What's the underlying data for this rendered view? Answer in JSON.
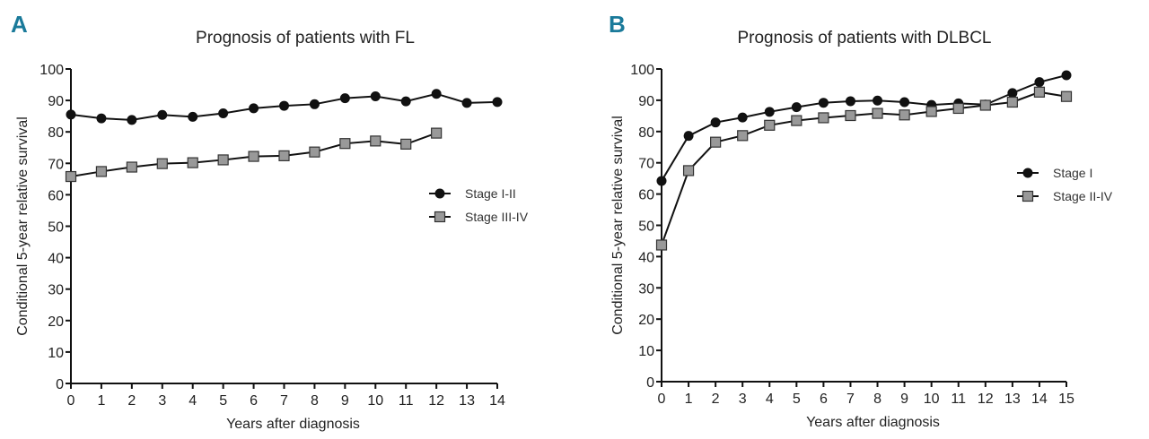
{
  "chart_data": [
    {
      "id": "A",
      "type": "line",
      "panel_label": "A",
      "title": "Prognosis of patients with FL",
      "xlabel": "Years after diagnosis",
      "ylabel": "Conditional 5-year relative survival",
      "x": [
        0,
        1,
        2,
        3,
        4,
        5,
        6,
        7,
        8,
        9,
        10,
        11,
        12,
        13,
        14
      ],
      "xlim": [
        0,
        14
      ],
      "ylim": [
        0,
        100
      ],
      "yticks": [
        0,
        10,
        20,
        30,
        40,
        50,
        60,
        70,
        80,
        90,
        100
      ],
      "xticks": [
        0,
        1,
        2,
        3,
        4,
        5,
        6,
        7,
        8,
        9,
        10,
        11,
        12,
        13,
        14
      ],
      "grid": false,
      "legend_position": "right-middle",
      "series": [
        {
          "name": "Stage I-II",
          "marker": "circle",
          "color": "#111111",
          "values": [
            85.5,
            84.3,
            83.8,
            85.4,
            84.8,
            85.9,
            87.5,
            88.3,
            88.8,
            90.7,
            91.3,
            89.7,
            92.1,
            89.2,
            89.5
          ]
        },
        {
          "name": "Stage III-IV",
          "marker": "square",
          "color": "#999999",
          "values": [
            65.8,
            67.4,
            68.8,
            69.9,
            70.2,
            71.1,
            72.2,
            72.4,
            73.6,
            76.3,
            77.1,
            76.1,
            79.6
          ]
        }
      ]
    },
    {
      "id": "B",
      "type": "line",
      "panel_label": "B",
      "title": "Prognosis of patients with DLBCL",
      "xlabel": "Years after diagnosis",
      "ylabel": "Conditional 5-year relative survival",
      "x": [
        0,
        1,
        2,
        3,
        4,
        5,
        6,
        7,
        8,
        9,
        10,
        11,
        12,
        13,
        14,
        15
      ],
      "xlim": [
        0,
        15
      ],
      "ylim": [
        0,
        100
      ],
      "yticks": [
        0,
        10,
        20,
        30,
        40,
        50,
        60,
        70,
        80,
        90,
        100
      ],
      "xticks": [
        0,
        1,
        2,
        3,
        4,
        5,
        6,
        7,
        8,
        9,
        10,
        11,
        12,
        13,
        14,
        15
      ],
      "grid": false,
      "legend_position": "right-middle",
      "series": [
        {
          "name": "Stage I",
          "marker": "circle",
          "color": "#111111",
          "values": [
            64.2,
            78.6,
            82.9,
            84.5,
            86.3,
            87.8,
            89.2,
            89.7,
            89.9,
            89.4,
            88.5,
            89.0,
            88.6,
            92.3,
            95.8,
            98.0
          ]
        },
        {
          "name": "Stage II-IV",
          "marker": "square",
          "color": "#999999",
          "values": [
            43.7,
            67.5,
            76.6,
            78.7,
            82.0,
            83.5,
            84.4,
            85.1,
            85.8,
            85.3,
            86.4,
            87.4,
            88.4,
            89.4,
            92.6,
            91.2
          ]
        }
      ]
    }
  ]
}
